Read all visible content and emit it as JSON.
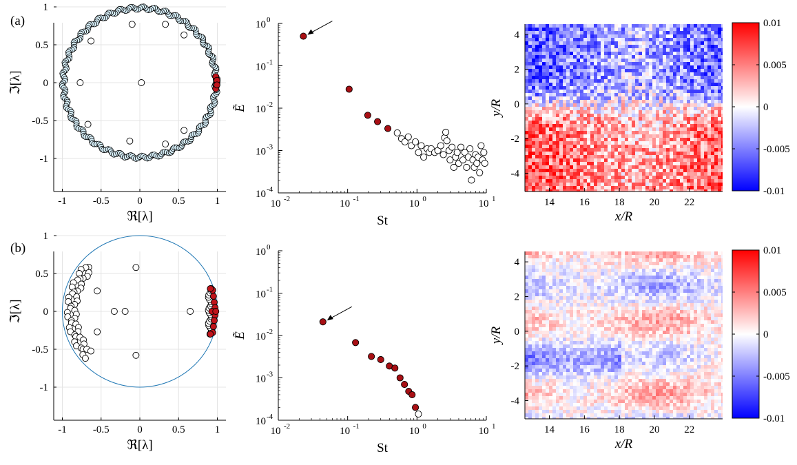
{
  "rows": [
    {
      "label": "(a)",
      "eig": {
        "xlabel": "ℜ[λ]",
        "ylabel": "ℑ[λ]",
        "xticks": [
          "-1",
          "-0.5",
          "0",
          "0.5",
          "1"
        ],
        "yticks": [
          "1",
          "0.5",
          "0",
          "-0.5",
          "-1"
        ],
        "ring": "dense",
        "ring_count": 260,
        "inner_points": [
          [
            -0.1,
            0.77
          ],
          [
            0.33,
            0.77
          ],
          [
            0.57,
            0.63
          ],
          [
            -0.63,
            0.55
          ],
          [
            -0.67,
            -0.55
          ],
          [
            0.57,
            -0.63
          ],
          [
            -0.13,
            -0.77
          ],
          [
            0.33,
            -0.81
          ],
          [
            -0.77,
            0.0
          ],
          [
            0.02,
            0.0
          ]
        ],
        "red_points": [
          [
            0.985,
            0.05
          ],
          [
            0.99,
            0.02
          ],
          [
            0.995,
            0.0
          ],
          [
            0.99,
            -0.02
          ],
          [
            0.985,
            -0.05
          ],
          [
            0.98,
            0.08
          ],
          [
            0.98,
            -0.08
          ],
          [
            0.995,
            0.03
          ],
          [
            0.995,
            -0.03
          ]
        ]
      },
      "spec": {
        "xlabel": "St",
        "ylabel": "Ẽ",
        "xticks": [
          "10",
          "10",
          "10"
        ],
        "xtick_exp": [
          "-2",
          "-1",
          "1"
        ],
        "xtick_mid": "10",
        "xtick_mid_exp": "0",
        "yticks_exp": [
          "0",
          "-1",
          "-2",
          "-3",
          "-4"
        ],
        "red": [
          [
            0.023,
            0.5
          ],
          [
            0.105,
            0.028
          ],
          [
            0.195,
            0.0068
          ],
          [
            0.27,
            0.0048
          ],
          [
            0.38,
            0.0033
          ]
        ],
        "arrow": [
          0.023,
          0.5
        ],
        "white": [
          [
            0.52,
            0.0026
          ],
          [
            0.6,
            0.0019
          ],
          [
            0.67,
            0.0016
          ],
          [
            0.75,
            0.0021
          ],
          [
            0.83,
            0.0013
          ],
          [
            0.95,
            0.0016
          ],
          [
            1.05,
            0.0009
          ],
          [
            1.15,
            0.0013
          ],
          [
            1.25,
            0.0007
          ],
          [
            1.4,
            0.0011
          ],
          [
            1.5,
            0.0009
          ],
          [
            1.6,
            0.0011
          ],
          [
            1.8,
            0.0009
          ],
          [
            2.0,
            0.001
          ],
          [
            2.2,
            0.0013
          ],
          [
            2.4,
            0.0008
          ],
          [
            2.5,
            0.002
          ],
          [
            2.6,
            0.0027
          ],
          [
            2.7,
            0.0017
          ],
          [
            2.9,
            0.001
          ],
          [
            3.0,
            0.0006
          ],
          [
            3.2,
            0.0012
          ],
          [
            3.4,
            0.0004
          ],
          [
            3.6,
            0.0007
          ],
          [
            3.8,
            0.0009
          ],
          [
            4.0,
            0.0005
          ],
          [
            4.3,
            0.0012
          ],
          [
            4.6,
            0.0006
          ],
          [
            4.9,
            0.0009
          ],
          [
            5.2,
            0.0004
          ],
          [
            5.5,
            0.0007
          ],
          [
            5.8,
            0.0011
          ],
          [
            6.1,
            0.0002
          ],
          [
            6.4,
            0.0006
          ],
          [
            6.7,
            0.0004
          ],
          [
            7.0,
            0.0008
          ],
          [
            7.3,
            0.0005
          ],
          [
            7.6,
            0.0007
          ],
          [
            8.0,
            0.0003
          ],
          [
            8.4,
            0.0013
          ],
          [
            8.8,
            0.0006
          ],
          [
            9.2,
            0.0009
          ],
          [
            9.5,
            0.0005
          ]
        ]
      },
      "field": {
        "xlabel": "x/R",
        "ylabel": "y/R",
        "xticks": [
          "14",
          "16",
          "18",
          "20",
          "22"
        ],
        "yticks": [
          "4",
          "2",
          "0",
          "-2",
          "-4"
        ],
        "cbar_ticks": [
          "0.01",
          "0.005",
          "0",
          "-0.005",
          "-0.01"
        ],
        "mode": "strong"
      }
    },
    {
      "label": "(b)",
      "eig": {
        "xlabel": "ℜ[λ]",
        "ylabel": "ℑ[λ]",
        "xticks": [
          "-1",
          "-0.5",
          "0",
          "0.5",
          "1"
        ],
        "yticks": [
          "1",
          "0.5",
          "0",
          "-0.5",
          "-1"
        ],
        "ring": "thin",
        "ring_count": 0,
        "inner_points": [
          [
            -0.05,
            0.58
          ],
          [
            -0.55,
            0.27
          ],
          [
            -0.33,
            0.0
          ],
          [
            -0.19,
            0.0
          ],
          [
            0.65,
            0.0
          ],
          [
            -0.55,
            -0.27
          ],
          [
            -0.05,
            -0.58
          ]
        ],
        "left_cluster": true,
        "red_points": [
          [
            0.94,
            0.28
          ],
          [
            0.95,
            0.2
          ],
          [
            0.96,
            0.12
          ],
          [
            0.97,
            0.05
          ],
          [
            0.97,
            -0.05
          ],
          [
            0.96,
            -0.12
          ],
          [
            0.95,
            -0.2
          ],
          [
            0.94,
            -0.28
          ],
          [
            0.91,
            0.3
          ],
          [
            0.91,
            -0.3
          ],
          [
            0.93,
            0.0
          ],
          [
            0.98,
            0.0
          ]
        ]
      },
      "spec": {
        "xlabel": "St",
        "ylabel": "Ẽ",
        "xticks": [
          "10",
          "10",
          "10"
        ],
        "xtick_exp": [
          "-2",
          "-1",
          "1"
        ],
        "xtick_mid": "10",
        "xtick_mid_exp": "0",
        "yticks_exp": [
          "0",
          "-1",
          "-2",
          "-3",
          "-4"
        ],
        "red": [
          [
            0.044,
            0.021
          ],
          [
            0.13,
            0.0068
          ],
          [
            0.22,
            0.0032
          ],
          [
            0.3,
            0.0027
          ],
          [
            0.4,
            0.0019
          ],
          [
            0.48,
            0.0017
          ],
          [
            0.57,
            0.001
          ],
          [
            0.66,
            0.0007
          ],
          [
            0.76,
            0.00048
          ],
          [
            0.85,
            0.0004
          ],
          [
            0.95,
            0.0002
          ]
        ],
        "arrow": [
          0.044,
          0.021
        ],
        "white": [
          [
            1.05,
            0.00014
          ]
        ]
      },
      "field": {
        "xlabel": "x/R",
        "ylabel": "y/R",
        "xticks": [
          "14",
          "16",
          "18",
          "20",
          "22"
        ],
        "yticks": [
          "4",
          "2",
          "0",
          "-2",
          "-4"
        ],
        "cbar_ticks": [
          "0.01",
          "0.005",
          "0",
          "-0.005",
          "-0.01"
        ],
        "mode": "weak"
      }
    }
  ]
}
